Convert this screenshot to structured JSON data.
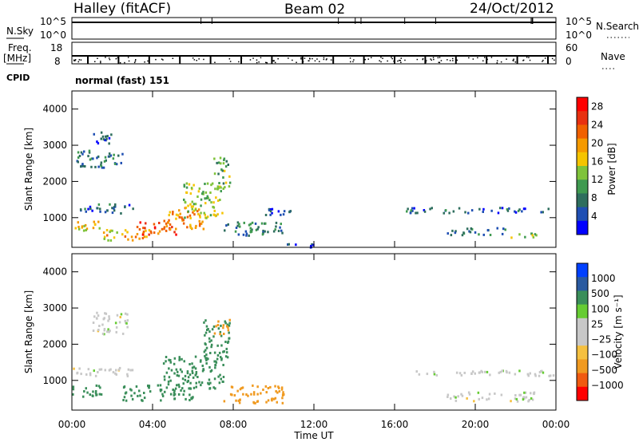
{
  "header": {
    "station": "Halley (fitACF)",
    "beam": "Beam 02",
    "date": "24/Oct/2012"
  },
  "top_panels": {
    "nsky_label": "N.Sky",
    "nsky_ticks": [
      "10^5",
      "10^0"
    ],
    "nsearch_label": "N.Search",
    "nsearch_ticks": [
      "10^5",
      "10^0"
    ],
    "freq_label": "Freq.",
    "freq_unit": "[MHz]",
    "freq_ticks": [
      "18",
      "8"
    ],
    "nave_label": "Nave",
    "nave_ticks": [
      "60",
      "0"
    ],
    "cpid_label": "CPID",
    "cpid_text": "normal (fast) 151"
  },
  "axes": {
    "ylabel": "Slant Range [km]",
    "yticks": [
      "1000",
      "2000",
      "3000",
      "4000"
    ],
    "xlabel": "Time UT",
    "xticks": [
      "00:00",
      "04:00",
      "08:00",
      "12:00",
      "16:00",
      "20:00",
      "00:00"
    ]
  },
  "colors": {
    "power_scale": [
      "#0000ff",
      "#1f4fb3",
      "#2e6e5e",
      "#3f9a50",
      "#7fc33a",
      "#f5c400",
      "#f59a00",
      "#f06000",
      "#e83010",
      "#ff0000"
    ],
    "velocity_scale": [
      "#ff0000",
      "#f05a10",
      "#f09a20",
      "#f5c040",
      "#c8c8c8",
      "#c8c8c8",
      "#66cc33",
      "#3a8e5a",
      "#2a5aa0",
      "#0040ff"
    ]
  },
  "chart_data": [
    {
      "type": "heatmap",
      "name": "power",
      "xlabel": "Time UT",
      "ylabel": "Slant Range [km]",
      "xlim_hours": [
        0,
        24
      ],
      "ylim_km": [
        180,
        4500
      ],
      "colorbar_label": "Power [dB]",
      "colorbar_ticks": [
        "28",
        "24",
        "20",
        "16",
        "12",
        "8",
        "4"
      ],
      "clim": [
        0,
        30
      ],
      "regions": [
        {
          "t0": 0.0,
          "t1": 1.5,
          "r0": 650,
          "r1": 950,
          "value": 16
        },
        {
          "t0": 0.0,
          "t1": 3.0,
          "r0": 1150,
          "r1": 1400,
          "value": 6
        },
        {
          "t0": 0.2,
          "t1": 2.5,
          "r0": 2400,
          "r1": 2900,
          "value": 7
        },
        {
          "t0": 1.0,
          "t1": 2.0,
          "r0": 3000,
          "r1": 3400,
          "value": 5
        },
        {
          "t0": 1.5,
          "t1": 4.0,
          "r0": 400,
          "r1": 700,
          "value": 18
        },
        {
          "t0": 3.0,
          "t1": 5.2,
          "r0": 550,
          "r1": 900,
          "value": 24
        },
        {
          "t0": 4.5,
          "t1": 6.5,
          "r0": 700,
          "r1": 1300,
          "value": 20
        },
        {
          "t0": 5.5,
          "t1": 7.5,
          "r0": 1000,
          "r1": 2000,
          "value": 14
        },
        {
          "t0": 7.0,
          "t1": 7.8,
          "r0": 1800,
          "r1": 2700,
          "value": 12
        },
        {
          "t0": 7.5,
          "t1": 10.5,
          "r0": 500,
          "r1": 900,
          "value": 8
        },
        {
          "t0": 9.0,
          "t1": 11.0,
          "r0": 1100,
          "r1": 1300,
          "value": 5
        },
        {
          "t0": 10.0,
          "t1": 12.0,
          "r0": 200,
          "r1": 300,
          "value": 4
        },
        {
          "t0": 16.5,
          "t1": 24.0,
          "r0": 1150,
          "r1": 1300,
          "value": 6
        },
        {
          "t0": 18.5,
          "t1": 21.5,
          "r0": 550,
          "r1": 750,
          "value": 7
        },
        {
          "t0": 21.5,
          "t1": 23.0,
          "r0": 450,
          "r1": 600,
          "value": 14
        }
      ]
    },
    {
      "type": "heatmap",
      "name": "velocity",
      "xlabel": "Time UT",
      "ylabel": "Slant Range [km]",
      "xlim_hours": [
        0,
        24
      ],
      "ylim_km": [
        180,
        4500
      ],
      "colorbar_label": "Velocity [m s⁻¹]",
      "colorbar_ticks": [
        "1000",
        "500",
        "100",
        "25",
        "−25",
        "−100",
        "−500",
        "−1000"
      ],
      "regions": [
        {
          "t0": 0.0,
          "t1": 1.5,
          "r0": 550,
          "r1": 900,
          "value": 150
        },
        {
          "t0": 0.0,
          "t1": 3.0,
          "r0": 1150,
          "r1": 1400,
          "value": 0
        },
        {
          "t0": 1.0,
          "t1": 2.8,
          "r0": 2300,
          "r1": 2900,
          "value": 0
        },
        {
          "t0": 2.5,
          "t1": 6.0,
          "r0": 450,
          "r1": 900,
          "value": 300
        },
        {
          "t0": 4.5,
          "t1": 7.5,
          "r0": 800,
          "r1": 1700,
          "value": 250
        },
        {
          "t0": 6.5,
          "t1": 7.8,
          "r0": 1600,
          "r1": 2700,
          "value": 200
        },
        {
          "t0": 7.0,
          "t1": 7.8,
          "r0": 2300,
          "r1": 2700,
          "value": -200
        },
        {
          "t0": 7.5,
          "t1": 10.5,
          "r0": 400,
          "r1": 900,
          "value": -150
        },
        {
          "t0": 16.5,
          "t1": 24.0,
          "r0": 1150,
          "r1": 1300,
          "value": 0
        },
        {
          "t0": 18.5,
          "t1": 23.0,
          "r0": 450,
          "r1": 700,
          "value": 0
        }
      ]
    }
  ]
}
